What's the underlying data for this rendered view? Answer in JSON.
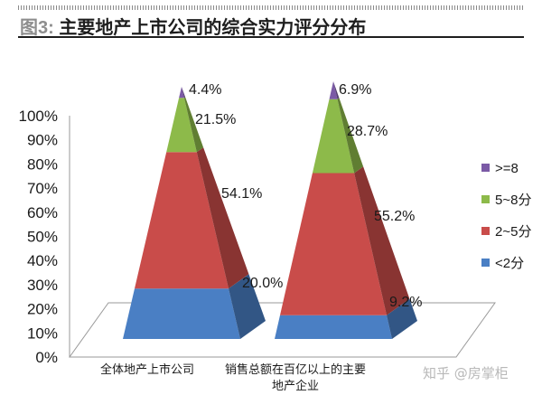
{
  "title": {
    "lead": "图3:",
    "text": "主要地产上市公司的综合实力评分分布"
  },
  "watermark": "知乎 @房掌柜",
  "colors": {
    "ge8": "#7b5aa6",
    "5to8": "#8dba4a",
    "2to5": "#c94c4a",
    "lt2": "#4a7fc4"
  },
  "chart_data": {
    "type": "bar",
    "subtype": "stacked-100-percent-pyramid",
    "categories": [
      "全体地产上市公司",
      "销售总额在百亿以上的主要地产企业"
    ],
    "series": [
      {
        "name": "<2分",
        "key": "lt2",
        "values": [
          20.0,
          9.2
        ]
      },
      {
        "name": "2~5分",
        "key": "2to5",
        "values": [
          54.1,
          55.2
        ]
      },
      {
        "name": "5~8分",
        "key": "5to8",
        "values": [
          21.5,
          28.7
        ]
      },
      {
        "name": ">=8",
        "key": "ge8",
        "values": [
          4.4,
          6.9
        ]
      }
    ],
    "data_labels": [
      [
        "20.0%",
        "54.1%",
        "21.5%",
        "4.4%"
      ],
      [
        "9.2%",
        "55.2%",
        "28.7%",
        "6.9%"
      ]
    ],
    "yticks": [
      "0%",
      "10%",
      "20%",
      "30%",
      "40%",
      "50%",
      "60%",
      "70%",
      "80%",
      "90%",
      "100%"
    ],
    "ylim": [
      0,
      100
    ],
    "legend": {
      "position": "right",
      "order": [
        ">=8",
        "5~8分",
        "2~5分",
        "<2分"
      ]
    }
  }
}
